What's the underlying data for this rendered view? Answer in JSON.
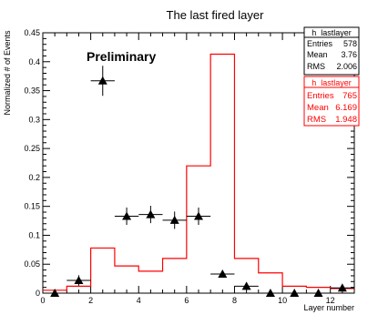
{
  "chart_data": {
    "type": "line",
    "title": "The last fired layer",
    "xlabel": "Layer number",
    "ylabel": "Normalized # of Events",
    "annotation": "Preliminary",
    "xlim": [
      0,
      13
    ],
    "ylim": [
      0,
      0.45
    ],
    "x_ticks": [
      0,
      2,
      4,
      6,
      8,
      10,
      12
    ],
    "y_ticks": [
      0,
      0.05,
      0.1,
      0.15,
      0.2,
      0.25,
      0.3,
      0.35,
      0.4,
      0.45
    ],
    "x_tick_labels": [
      "0",
      "2",
      "4",
      "6",
      "8",
      "10",
      "12"
    ],
    "y_tick_labels": [
      "0",
      "0.05",
      "0.1",
      "0.15",
      "0.2",
      "0.25",
      "0.3",
      "0.35",
      "0.4",
      "0.45"
    ],
    "series": [
      {
        "name": "h_lastlayer",
        "style": "markers",
        "color": "#000000",
        "x": [
          0.5,
          1.5,
          2.5,
          3.5,
          4.5,
          5.5,
          6.5,
          7.5,
          8.5,
          9.5,
          10.5,
          11.5,
          12.5
        ],
        "y": [
          0.0,
          0.022,
          0.367,
          0.133,
          0.136,
          0.126,
          0.133,
          0.033,
          0.012,
          0.0,
          0.0,
          0.0,
          0.009
        ],
        "yerr": [
          0.0,
          0.009,
          0.026,
          0.015,
          0.015,
          0.015,
          0.015,
          0.006,
          0.006,
          0.0,
          0.0,
          0.0,
          0.006
        ]
      },
      {
        "name": "h_lastlayer",
        "style": "step",
        "color": "#ff0000",
        "bin_edges": [
          0,
          1,
          2,
          3,
          4,
          5,
          6,
          7,
          8,
          9,
          10,
          11,
          12,
          13
        ],
        "values": [
          0.005,
          0.012,
          0.078,
          0.047,
          0.038,
          0.06,
          0.22,
          0.413,
          0.06,
          0.035,
          0.012,
          0.01,
          0.008
        ]
      }
    ]
  },
  "stats_boxes": [
    {
      "title": "h_lastlayer",
      "color": "#000000",
      "rows": [
        {
          "label": "Entries",
          "value": "578"
        },
        {
          "label": "Mean",
          "value": "3.76"
        },
        {
          "label": "RMS",
          "value": "2.006"
        }
      ]
    },
    {
      "title": "h_lastlayer",
      "color": "#ff0000",
      "rows": [
        {
          "label": "Entries",
          "value": "765"
        },
        {
          "label": "Mean",
          "value": "6.169"
        },
        {
          "label": "RMS",
          "value": "1.948"
        }
      ]
    }
  ]
}
